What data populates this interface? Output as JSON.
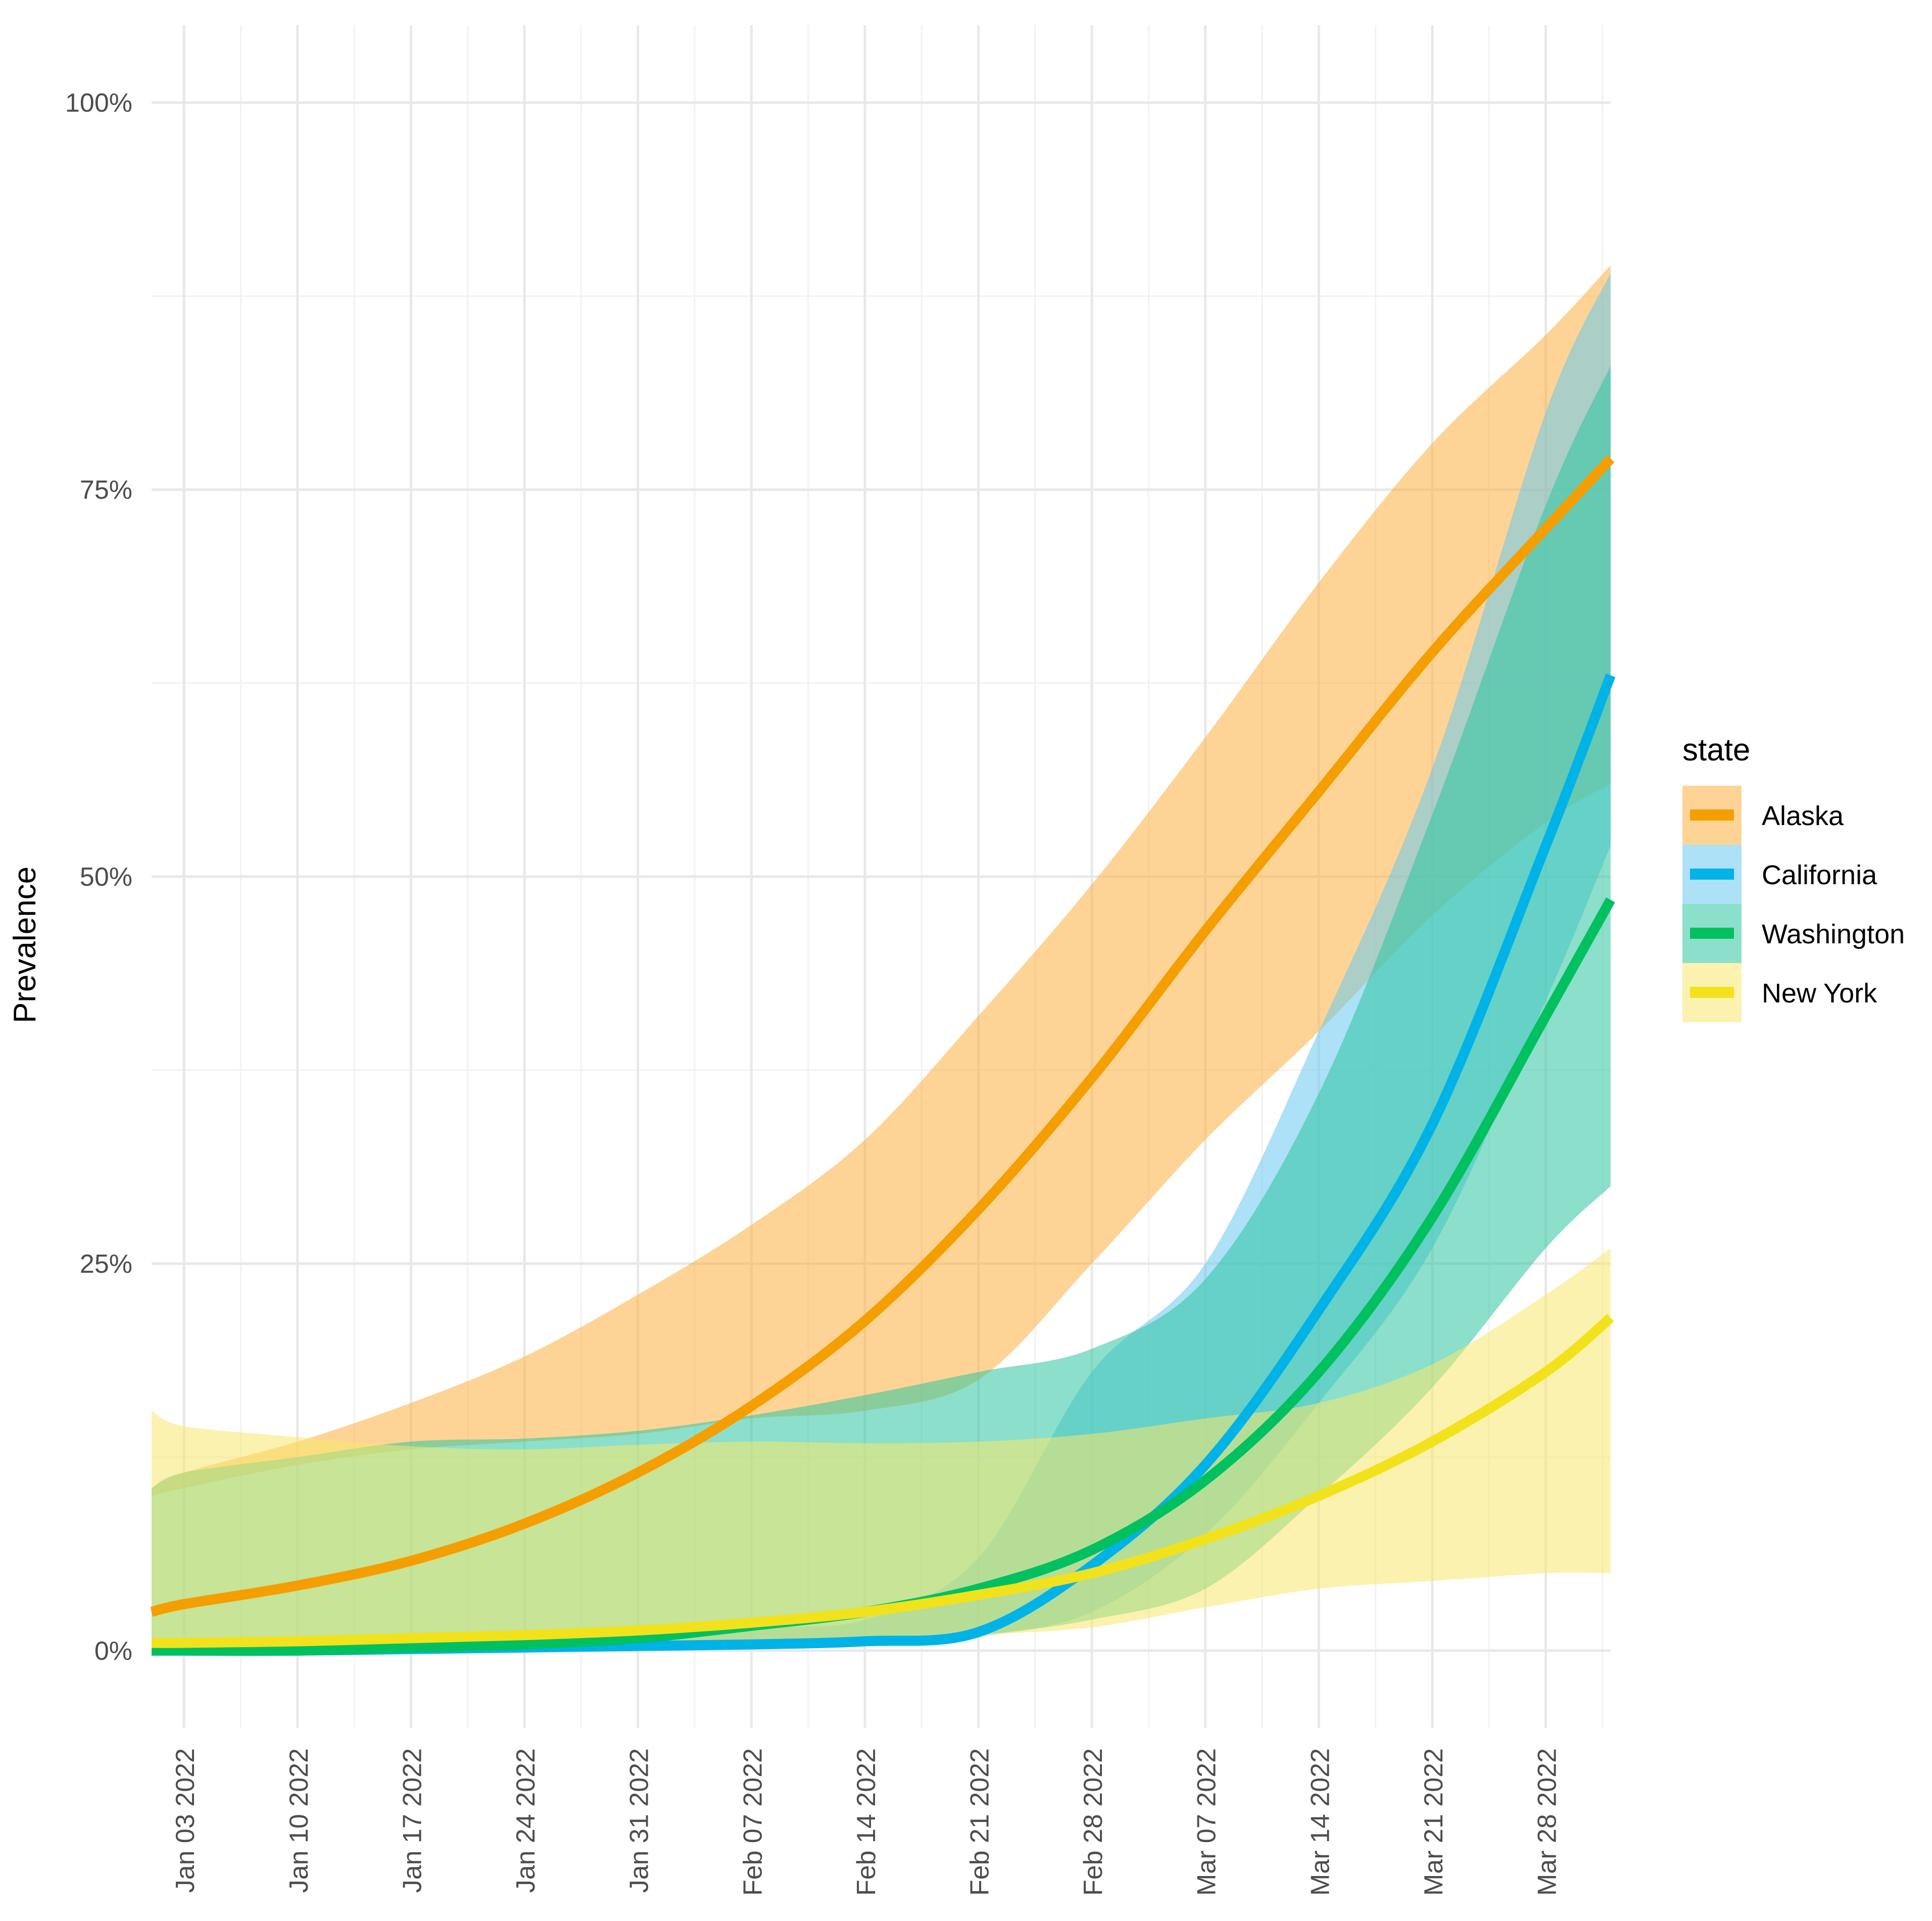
{
  "chart_data": {
    "type": "line",
    "title": "",
    "xlabel": "",
    "ylabel": "Prevalence",
    "x_axis": {
      "type": "date",
      "start_day": -2,
      "end_day": 89,
      "tick_days": [
        0,
        7,
        14,
        21,
        28,
        35,
        42,
        49,
        56,
        63,
        70,
        77,
        84
      ],
      "tick_labels": [
        "Jan 03 2022",
        "Jan 10 2022",
        "Jan 17 2022",
        "Jan 24 2022",
        "Jan 31 2022",
        "Feb 07 2022",
        "Feb 14 2022",
        "Feb 21 2022",
        "Feb 28 2022",
        "Mar 07 2022",
        "Mar 14 2022",
        "Mar 21 2022",
        "Mar 28 2022"
      ],
      "minor_tick_days": [
        3.5,
        10.5,
        17.5,
        24.5,
        31.5,
        38.5,
        45.5,
        52.5,
        59.5,
        66.5,
        73.5,
        80.5,
        87.5
      ]
    },
    "y_axis": {
      "ylim": [
        -5,
        105
      ],
      "ticks": [
        0,
        25,
        50,
        75,
        100
      ],
      "tick_labels": [
        "0%",
        "25%",
        "50%",
        "75%",
        "100%"
      ],
      "minor_ticks": [
        12.5,
        37.5,
        62.5,
        87.5
      ]
    },
    "grid": true,
    "legend": {
      "title": "state",
      "position": "right"
    },
    "day_points": [
      -2,
      0,
      7,
      14,
      21,
      28,
      35,
      42,
      49,
      56,
      63,
      70,
      77,
      84,
      88
    ],
    "series": [
      {
        "name": "Alaska",
        "line_color": "#F59E00",
        "band_color": "#FBB040",
        "values": [
          2.5,
          3,
          4.2,
          5.8,
          8.2,
          11.5,
          15.8,
          21.3,
          28.5,
          37,
          46.5,
          55.5,
          64.5,
          72.5,
          77
        ],
        "lower": [
          10,
          10.5,
          12,
          13,
          13.5,
          14,
          15,
          15.5,
          17.5,
          25,
          33,
          40,
          47.5,
          53.5,
          56
        ],
        "upper": [
          10.5,
          11.5,
          13.5,
          16,
          19,
          23,
          27.5,
          33,
          41,
          49.5,
          59,
          69,
          78,
          85,
          89.5
        ]
      },
      {
        "name": "California",
        "line_color": "#00B3E6",
        "band_color": "#68C8F0",
        "values": [
          0,
          0,
          0,
          0.1,
          0.2,
          0.3,
          0.4,
          0.6,
          1.2,
          5.5,
          12,
          22,
          34,
          52,
          63
        ],
        "lower": [
          0,
          0,
          0,
          0,
          0,
          0,
          0.2,
          0.4,
          0.9,
          2.5,
          7.5,
          16,
          26,
          42,
          52
        ],
        "upper": [
          0.3,
          0.4,
          0.5,
          0.6,
          0.8,
          1,
          1.5,
          2,
          6,
          18,
          25,
          40,
          57,
          80,
          89
        ]
      },
      {
        "name": "Washington",
        "line_color": "#00C060",
        "band_color": "#2EC4A0",
        "values": [
          0,
          0,
          0,
          0.2,
          0.4,
          0.8,
          1.6,
          2.5,
          4,
          6.5,
          11,
          18,
          28,
          41,
          48.5
        ],
        "lower": [
          0,
          0,
          0,
          0,
          0,
          0.1,
          0.2,
          0.4,
          1,
          2,
          4,
          10,
          17,
          26,
          30
        ],
        "upper": [
          10.5,
          11.5,
          12.5,
          13.5,
          13.7,
          14.2,
          15.2,
          16.5,
          18,
          19.5,
          24,
          36,
          54,
          74,
          83
        ]
      },
      {
        "name": "New York",
        "line_color": "#F2E21B",
        "band_color": "#F7E86E",
        "values": [
          0.5,
          0.5,
          0.6,
          0.8,
          1,
          1.3,
          1.8,
          2.5,
          3.6,
          5,
          7.2,
          10,
          13.5,
          18,
          21.5
        ],
        "lower": [
          0,
          0,
          0,
          0,
          0,
          0.1,
          0.2,
          0.4,
          1,
          1.5,
          2.8,
          4,
          4.5,
          5,
          5
        ],
        "upper": [
          15.5,
          14.5,
          13.8,
          13.2,
          13,
          13.3,
          13.5,
          13.4,
          13.5,
          14,
          15,
          16,
          18.5,
          23,
          26
        ]
      }
    ]
  }
}
